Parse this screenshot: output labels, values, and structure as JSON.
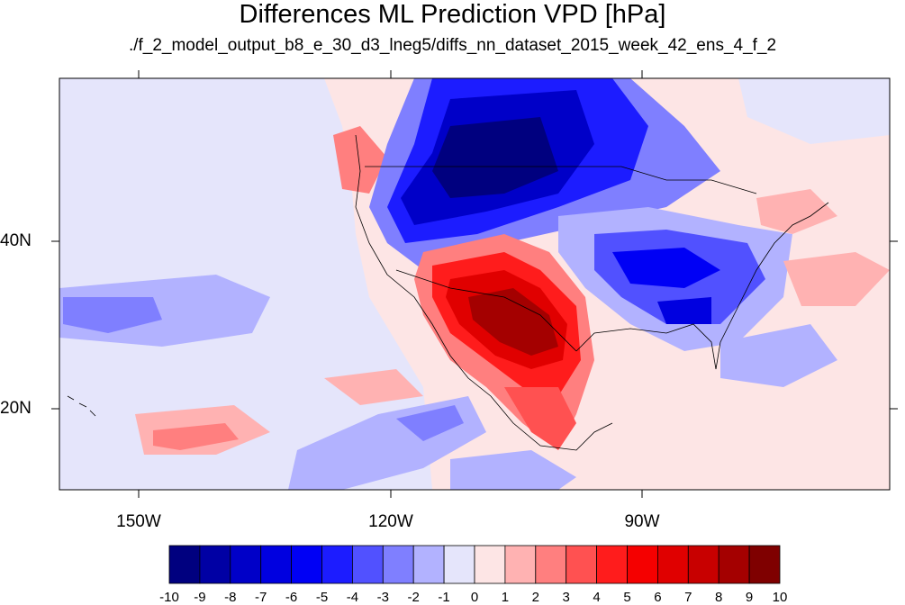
{
  "title": "Differences ML Prediction VPD [hPa]",
  "subtitle": "./f_2_model_output_b8_e_30_d3_lneg5/diffs_nn_dataset_2015_week_42_ens_4_f_2",
  "chart_data": {
    "type": "heatmap",
    "title": "Differences ML Prediction VPD [hPa]",
    "subtitle": "./f_2_model_output_b8_e_30_d3_lneg5/diffs_nn_dataset_2015_week_42_ens_4_f_2",
    "x_ticks": [
      {
        "lon": -150,
        "label": "150W"
      },
      {
        "lon": -120,
        "label": "120W"
      },
      {
        "lon": -90,
        "label": "90W"
      }
    ],
    "y_ticks": [
      {
        "lat": 40,
        "label": "40N"
      },
      {
        "lat": 20,
        "label": "20N"
      }
    ],
    "lon_range": [
      -159.4,
      -60.7
    ],
    "lat_range": [
      10.5,
      59.5
    ],
    "colorbar": {
      "levels": [
        -10,
        -9,
        -8,
        -7,
        -6,
        -5,
        -4,
        -3,
        -2,
        -1,
        0,
        1,
        2,
        3,
        4,
        5,
        6,
        7,
        8,
        9,
        10
      ],
      "labels": [
        "-10",
        "-9",
        "-8",
        "-7",
        "-6",
        "-5",
        "-4",
        "-3",
        "-2",
        "-1",
        "0",
        "1",
        "2",
        "3",
        "4",
        "5",
        "6",
        "7",
        "8",
        "9",
        "10"
      ],
      "colors": [
        "#00007f",
        "#0000a4",
        "#0000c8",
        "#0000e0",
        "#0000f5",
        "#1c1cff",
        "#5151ff",
        "#7f7fff",
        "#b2b2ff",
        "#e5e5fb",
        "#fde5e5",
        "#ffb2b2",
        "#ff7f7f",
        "#ff5151",
        "#ff1c1c",
        "#f50000",
        "#e00000",
        "#c80000",
        "#a40000",
        "#7f0000"
      ]
    }
  }
}
